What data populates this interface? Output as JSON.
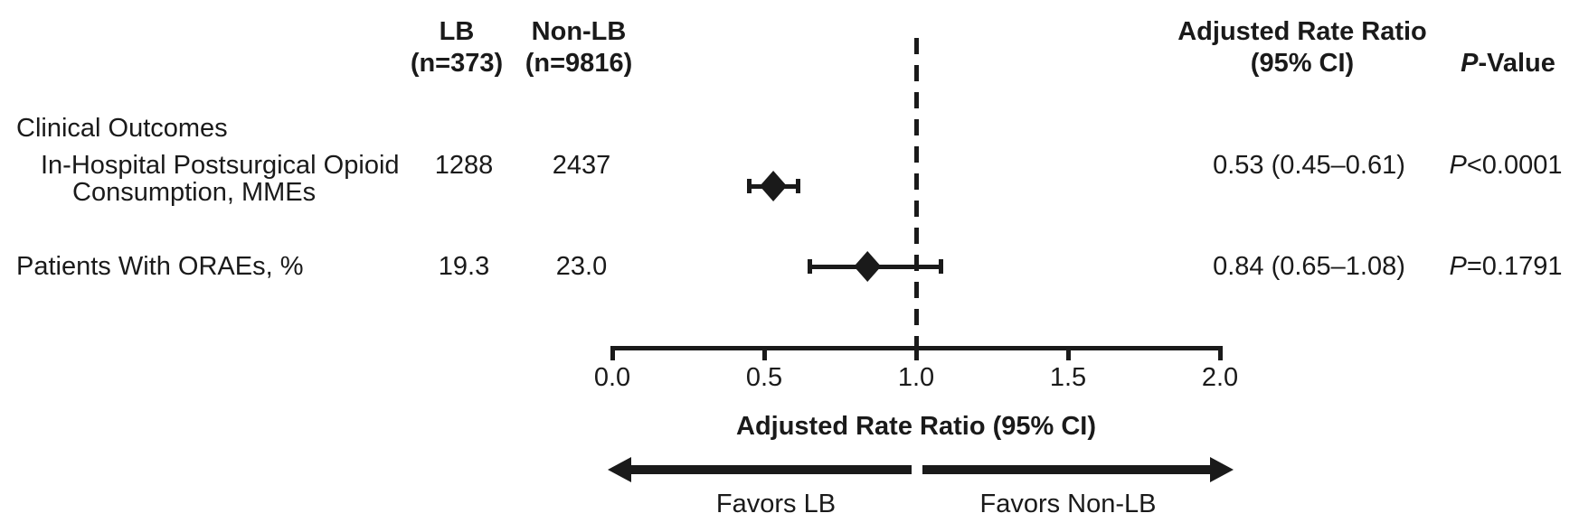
{
  "figure": {
    "header": {
      "lb_line1": "LB",
      "lb_line2": "(n=373)",
      "nonlb_line1": "Non-LB",
      "nonlb_line2": "(n=9816)",
      "arr_line1": "Adjusted Rate Ratio",
      "arr_line2": "(95% CI)",
      "pvalue_symbol": "P",
      "pvalue_rest": "-Value"
    },
    "section_label": "Clinical Outcomes",
    "favors_left": "Favors LB",
    "favors_right": "Favors Non-LB"
  },
  "chart_data": {
    "type": "forest",
    "xlabel": "Adjusted Rate Ratio (95% CI)",
    "xlim": [
      0.0,
      2.0
    ],
    "x_ticks": [
      0.0,
      0.5,
      1.0,
      1.5,
      2.0
    ],
    "reference_line": 1.0,
    "grid": false,
    "rows": [
      {
        "label_lines": [
          "In-Hospital Postsurgical Opioid",
          "Consumption, MMEs"
        ],
        "lb_value": "1288",
        "nonlb_value": "2437",
        "estimate": 0.53,
        "ci_low": 0.45,
        "ci_high": 0.61,
        "rr_text": "0.53 (0.45–0.61)",
        "p_symbol": "P",
        "p_rest": "<0.0001"
      },
      {
        "label_lines": [
          "Patients With ORAEs, %"
        ],
        "lb_value": "19.3",
        "nonlb_value": "23.0",
        "estimate": 0.84,
        "ci_low": 0.65,
        "ci_high": 1.08,
        "rr_text": "0.84 (0.65–1.08)",
        "p_symbol": "P",
        "p_rest": "=0.1791"
      }
    ]
  }
}
